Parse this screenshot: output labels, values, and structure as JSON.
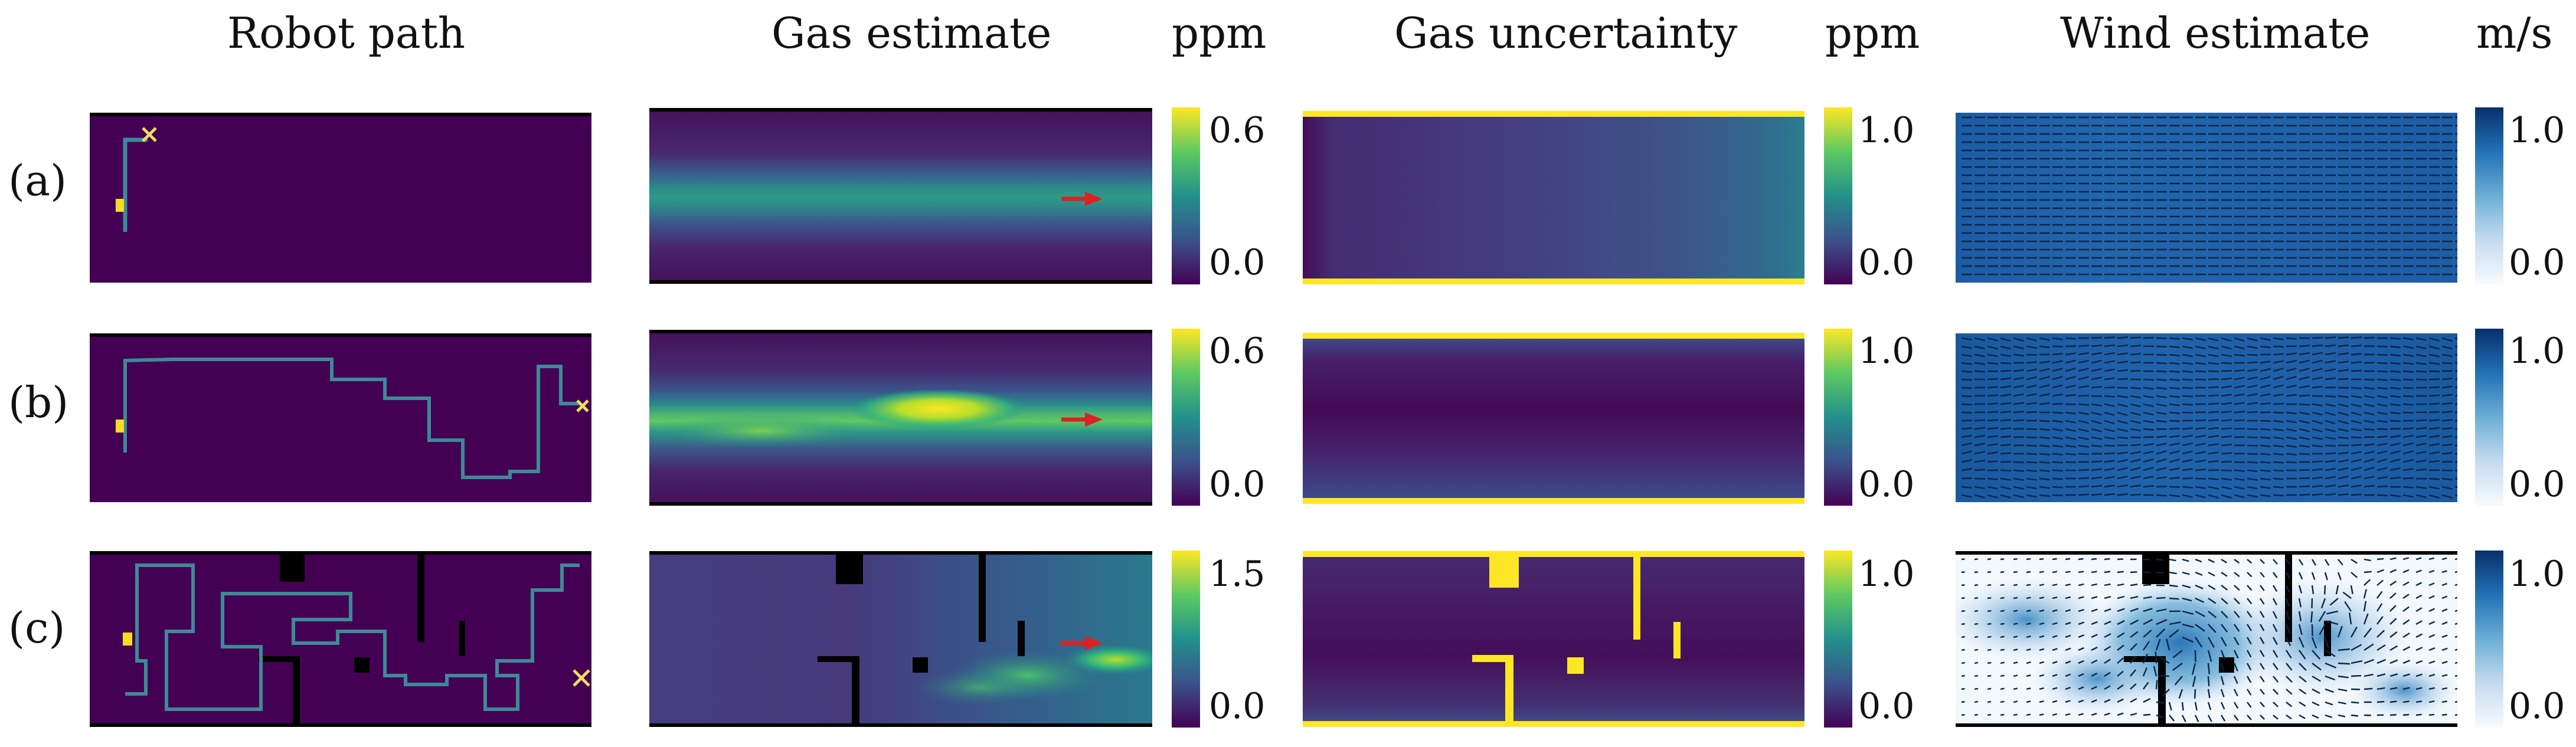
{
  "columns": {
    "robot_path": "Robot path",
    "gas_estimate": "Gas estimate",
    "gas_uncertainty": "Gas uncertainty",
    "wind_estimate": "Wind estimate"
  },
  "units": {
    "gas_estimate": "ppm",
    "gas_uncertainty": "ppm",
    "wind_estimate": "m/s"
  },
  "rows": [
    {
      "label": "(a)",
      "ticks": {
        "gas_estimate": [
          "0.6",
          "0.0"
        ],
        "gas_uncertainty": [
          "1.0",
          "0.0"
        ],
        "wind_estimate": [
          "1.0",
          "0.0"
        ]
      }
    },
    {
      "label": "(b)",
      "ticks": {
        "gas_estimate": [
          "0.6",
          "0.0"
        ],
        "gas_uncertainty": [
          "1.0",
          "0.0"
        ],
        "wind_estimate": [
          "1.0",
          "0.0"
        ]
      }
    },
    {
      "label": "(c)",
      "ticks": {
        "gas_estimate": [
          "1.5",
          "0.0"
        ],
        "gas_uncertainty": [
          "1.0",
          "0.0"
        ],
        "wind_estimate": [
          "1.0",
          "0.0"
        ]
      }
    }
  ],
  "colors": {
    "viridis_dark": "#440154",
    "viridis_teal": "#21918c",
    "viridis_yellow": "#fde725",
    "path_line": "#3d8a96",
    "start_marker": "#f5dd25",
    "end_marker": "#f0e060",
    "wind_arrow_color": "#0b2445",
    "source_arrow": "#e02020"
  }
}
